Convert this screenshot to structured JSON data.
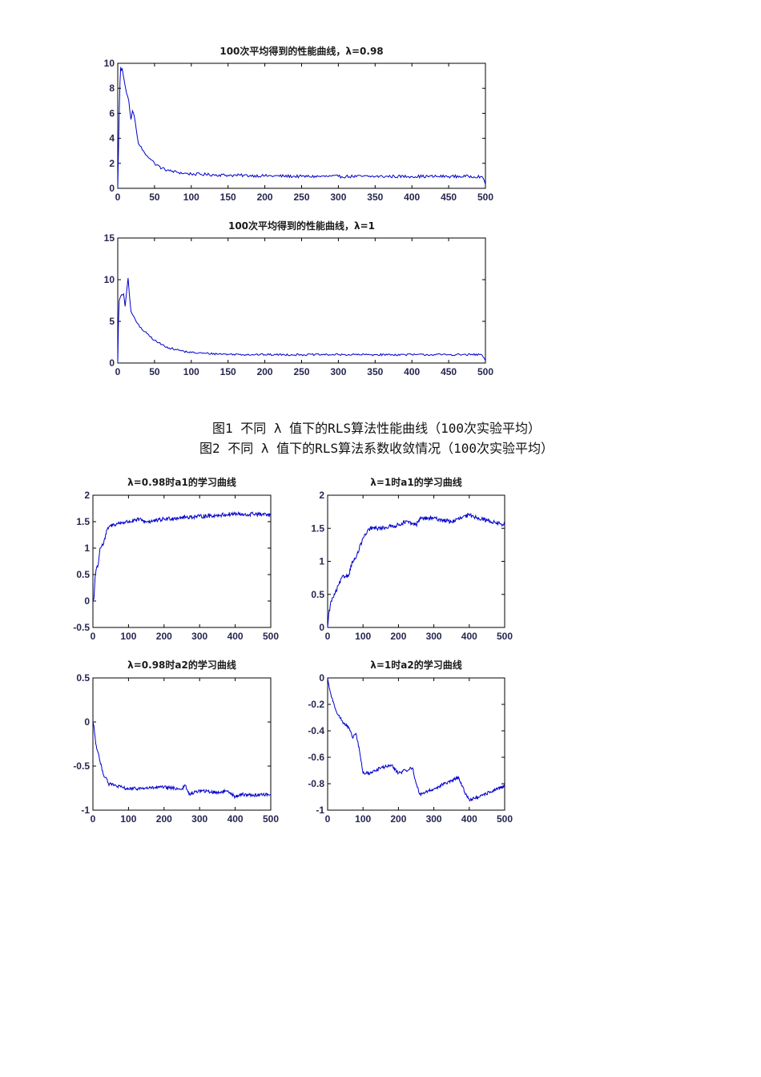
{
  "captions": {
    "fig1": "图1 不同 λ 值下的RLS算法性能曲线（100次实验平均）",
    "fig2": "图2 不同 λ 值下的RLS算法系数收敛情况（100次实验平均）"
  },
  "line_color": "#0000cc",
  "chart_data": [
    {
      "id": "perf98",
      "type": "line",
      "title": "100次平均得到的性能曲线，λ=0.98",
      "xlim": [
        0,
        500
      ],
      "ylim": [
        0,
        10
      ],
      "xticks": [
        0,
        50,
        100,
        150,
        200,
        250,
        300,
        350,
        400,
        450,
        500
      ],
      "yticks": [
        0,
        2,
        4,
        6,
        8,
        10
      ],
      "x": [
        0,
        1,
        2,
        3,
        4,
        5,
        6,
        8,
        10,
        12,
        15,
        18,
        20,
        22,
        25,
        28,
        30,
        35,
        40,
        45,
        50,
        60,
        70,
        80,
        90,
        100,
        120,
        150,
        200,
        250,
        300,
        350,
        400,
        450,
        495,
        500
      ],
      "y": [
        0,
        3,
        6,
        8.5,
        9.7,
        9.4,
        9.6,
        8.9,
        8.2,
        7.6,
        7,
        5.5,
        6.2,
        5.9,
        4.8,
        3.6,
        3.4,
        3,
        2.6,
        2.3,
        2,
        1.6,
        1.4,
        1.3,
        1.2,
        1.15,
        1.1,
        1.05,
        1,
        0.95,
        0.95,
        0.95,
        0.95,
        0.95,
        0.95,
        0.3
      ],
      "noise": 0.12
    },
    {
      "id": "perf1",
      "type": "line",
      "title": "100次平均得到的性能曲线，λ=1",
      "xlim": [
        0,
        500
      ],
      "ylim": [
        0,
        15
      ],
      "xticks": [
        0,
        50,
        100,
        150,
        200,
        250,
        300,
        350,
        400,
        450,
        500
      ],
      "yticks": [
        0,
        5,
        10,
        15
      ],
      "x": [
        0,
        1,
        2,
        3,
        5,
        8,
        10,
        12,
        14,
        16,
        18,
        20,
        25,
        30,
        40,
        50,
        60,
        70,
        80,
        90,
        100,
        120,
        150,
        200,
        250,
        300,
        350,
        400,
        450,
        495,
        500
      ],
      "y": [
        0,
        5,
        7.5,
        7.8,
        8.2,
        8.3,
        6.8,
        8.5,
        10.2,
        8,
        6.2,
        5.8,
        5,
        4.3,
        3.5,
        2.7,
        2.2,
        1.8,
        1.6,
        1.4,
        1.25,
        1.15,
        1.05,
        1,
        1,
        1,
        1,
        1,
        1,
        1,
        0.3
      ],
      "noise": 0.12
    },
    {
      "id": "a1_98",
      "type": "line",
      "title": "λ=0.98时a1的学习曲线",
      "xlim": [
        0,
        500
      ],
      "ylim": [
        -0.5,
        2
      ],
      "xticks": [
        0,
        100,
        200,
        300,
        400,
        500
      ],
      "yticks": [
        -0.5,
        0,
        0.5,
        1,
        1.5,
        2
      ],
      "x": [
        0,
        3,
        6,
        10,
        15,
        20,
        25,
        30,
        40,
        45,
        50,
        60,
        80,
        100,
        120,
        130,
        140,
        150,
        180,
        200,
        250,
        300,
        350,
        400,
        430,
        450,
        500
      ],
      "y": [
        0,
        0.05,
        0.45,
        0.62,
        0.7,
        1,
        1.05,
        1.08,
        1.35,
        1.4,
        1.42,
        1.45,
        1.48,
        1.5,
        1.52,
        1.55,
        1.52,
        1.5,
        1.52,
        1.55,
        1.58,
        1.6,
        1.62,
        1.65,
        1.62,
        1.65,
        1.62
      ],
      "noise": 0.015
    },
    {
      "id": "a1_1",
      "type": "line",
      "title": "λ=1时a1的学习曲线",
      "xlim": [
        0,
        500
      ],
      "ylim": [
        0,
        2
      ],
      "xticks": [
        0,
        100,
        200,
        300,
        400,
        500
      ],
      "yticks": [
        0,
        0.5,
        1,
        1.5,
        2
      ],
      "x": [
        0,
        3,
        10,
        20,
        40,
        60,
        70,
        80,
        100,
        120,
        150,
        200,
        220,
        250,
        260,
        300,
        350,
        400,
        450,
        500
      ],
      "y": [
        0,
        0.2,
        0.4,
        0.5,
        0.75,
        0.8,
        1,
        1.05,
        1.35,
        1.5,
        1.5,
        1.55,
        1.6,
        1.55,
        1.65,
        1.65,
        1.6,
        1.7,
        1.62,
        1.55
      ],
      "noise": 0.015
    },
    {
      "id": "a2_98",
      "type": "line",
      "title": "λ=0.98时a2的学习曲线",
      "xlim": [
        0,
        500
      ],
      "ylim": [
        -1,
        0.5
      ],
      "xticks": [
        0,
        100,
        200,
        300,
        400,
        500
      ],
      "yticks": [
        -1,
        -0.5,
        0,
        0.5
      ],
      "x": [
        0,
        3,
        8,
        15,
        20,
        30,
        40,
        45,
        50,
        60,
        100,
        150,
        200,
        250,
        260,
        270,
        300,
        350,
        380,
        400,
        420,
        450,
        500
      ],
      "y": [
        0,
        -0.05,
        -0.25,
        -0.35,
        -0.45,
        -0.6,
        -0.65,
        -0.72,
        -0.7,
        -0.72,
        -0.76,
        -0.75,
        -0.74,
        -0.76,
        -0.72,
        -0.82,
        -0.78,
        -0.8,
        -0.78,
        -0.85,
        -0.82,
        -0.83,
        -0.82
      ],
      "noise": 0.012
    },
    {
      "id": "a2_1",
      "type": "line",
      "title": "λ=1时a2的学习曲线",
      "xlim": [
        0,
        500
      ],
      "ylim": [
        -1,
        0
      ],
      "xticks": [
        0,
        100,
        200,
        300,
        400,
        500
      ],
      "yticks": [
        -1,
        -0.8,
        -0.6,
        -0.4,
        -0.2,
        0
      ],
      "x": [
        0,
        5,
        15,
        30,
        45,
        60,
        70,
        80,
        90,
        100,
        120,
        150,
        180,
        200,
        220,
        240,
        250,
        260,
        280,
        300,
        330,
        350,
        370,
        380,
        390,
        400,
        430,
        460,
        500
      ],
      "y": [
        0,
        -0.08,
        -0.18,
        -0.28,
        -0.34,
        -0.38,
        -0.45,
        -0.42,
        -0.55,
        -0.72,
        -0.72,
        -0.68,
        -0.66,
        -0.72,
        -0.7,
        -0.68,
        -0.8,
        -0.88,
        -0.86,
        -0.84,
        -0.8,
        -0.78,
        -0.75,
        -0.82,
        -0.88,
        -0.92,
        -0.9,
        -0.86,
        -0.82
      ],
      "noise": 0.012
    }
  ]
}
